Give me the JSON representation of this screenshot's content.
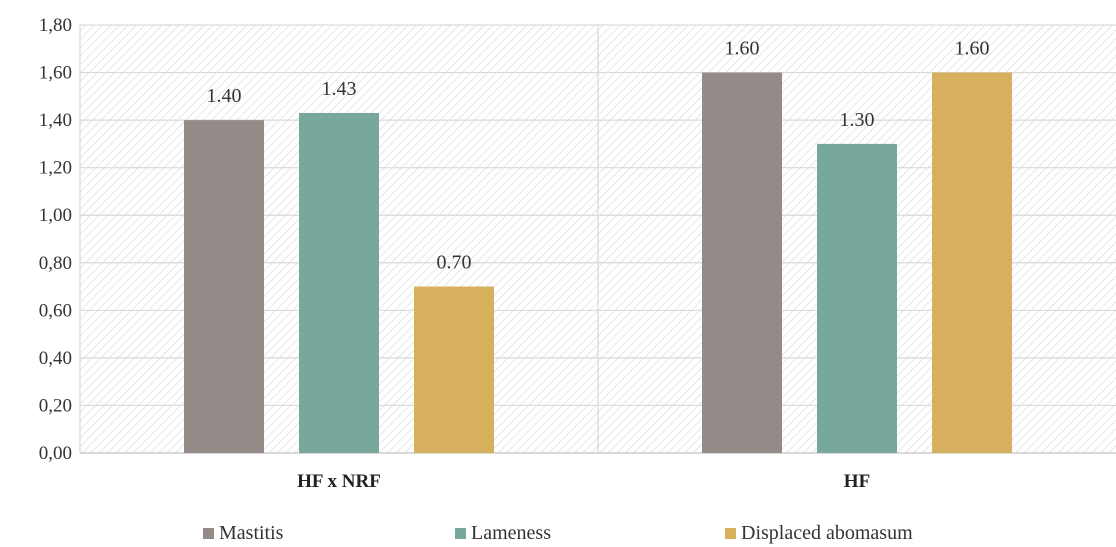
{
  "chart_data": {
    "type": "bar",
    "title": "",
    "xlabel": "",
    "ylabel": "",
    "categories": [
      "HF x NRF",
      "HF"
    ],
    "series": [
      {
        "name": "Mastitis",
        "values": [
          1.4,
          1.6
        ],
        "labels": [
          "1.40",
          "1.60"
        ],
        "color": "#948a87"
      },
      {
        "name": "Lameness",
        "values": [
          1.43,
          1.3
        ],
        "labels": [
          "1.43",
          "1.30"
        ],
        "color": "#78a89c"
      },
      {
        "name": "Displaced abomasum",
        "values": [
          0.7,
          1.6
        ],
        "labels": [
          "0.70",
          "1.60"
        ],
        "color": "#d6b05c"
      }
    ],
    "ylim": [
      0,
      1.8
    ],
    "yticks": [
      "0,00",
      "0,20",
      "0,40",
      "0,60",
      "0,80",
      "1,00",
      "1,20",
      "1,40",
      "1,60",
      "1,80"
    ],
    "grid": true,
    "legend": "bottom-center"
  }
}
